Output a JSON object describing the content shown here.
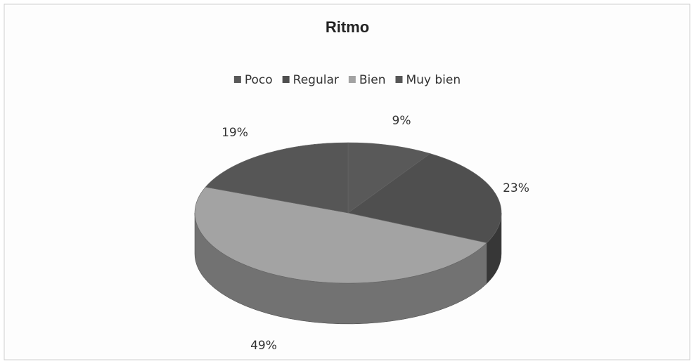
{
  "chart_data": {
    "type": "pie",
    "title": "Ritmo",
    "categories": [
      "Poco",
      "Regular",
      "Bien",
      "Muy bien"
    ],
    "values": [
      9,
      23,
      49,
      19
    ],
    "value_labels": [
      "9%",
      "23%",
      "49%",
      "19%"
    ],
    "colors": [
      "#595959",
      "#4f4f4f",
      "#a3a3a3",
      "#565656"
    ],
    "legend": "top"
  }
}
